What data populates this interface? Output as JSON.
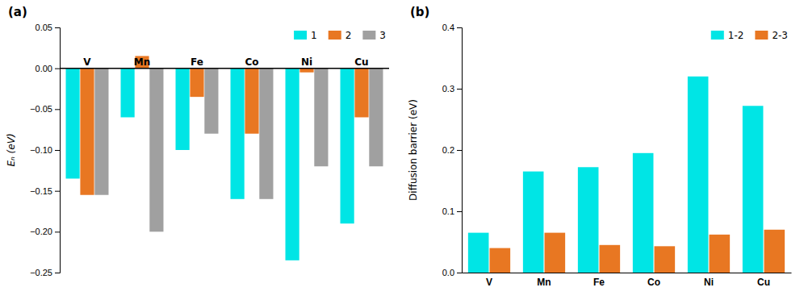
{
  "chart_data": [
    {
      "type": "bar",
      "title": "(a)",
      "categories": [
        "V",
        "Mn",
        "Fe",
        "Co",
        "Ni",
        "Cu"
      ],
      "series": [
        {
          "name": "1",
          "color": "#00E5E5",
          "values": [
            -0.135,
            -0.06,
            -0.1,
            -0.16,
            -0.235,
            -0.19
          ]
        },
        {
          "name": "2",
          "color": "#E87722",
          "values": [
            -0.155,
            0.015,
            -0.035,
            -0.08,
            -0.005,
            -0.06
          ]
        },
        {
          "name": "3",
          "color": "#A0A0A0",
          "values": [
            -0.155,
            -0.2,
            -0.08,
            -0.16,
            -0.12,
            -0.12
          ]
        }
      ],
      "ylabel": "Eₙ (eV)",
      "ylim": [
        -0.25,
        0.05
      ],
      "yticks": [
        {
          "value": -0.25,
          "label": "−0.25"
        },
        {
          "value": -0.2,
          "label": "−0.20"
        },
        {
          "value": -0.15,
          "label": "−0.15"
        },
        {
          "value": -0.1,
          "label": "−0.10"
        },
        {
          "value": -0.05,
          "label": "−0.05"
        },
        {
          "value": 0.0,
          "label": "0.00"
        },
        0.05
      ],
      "legend": "upper right"
    },
    {
      "type": "bar",
      "title": "(b)",
      "categories": [
        "V",
        "Mn",
        "Fe",
        "Co",
        "Ni",
        "Cu"
      ],
      "series": [
        {
          "name": "1-2",
          "color": "#00E5E5",
          "values": [
            0.065,
            0.165,
            0.172,
            0.195,
            0.32,
            0.272
          ]
        },
        {
          "name": "2-3",
          "color": "#E87722",
          "values": [
            0.04,
            0.065,
            0.045,
            0.043,
            0.062,
            0.07
          ]
        }
      ],
      "ylabel": "Diffusion barrier (eV)",
      "ylim": [
        0,
        0.4
      ],
      "yticks": [
        {
          "value": 0.0,
          "label": "0.0"
        },
        0.1,
        0.2,
        0.3,
        0.4
      ],
      "legend": "upper right"
    }
  ]
}
